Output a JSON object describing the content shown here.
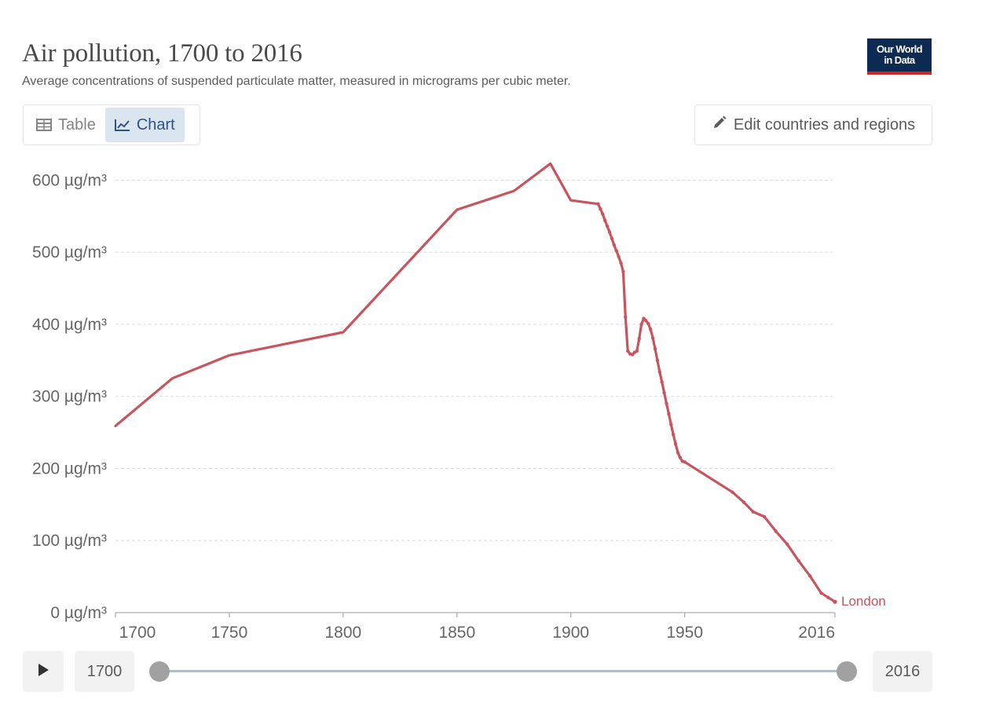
{
  "header": {
    "title": "Air pollution, 1700 to 2016",
    "subtitle": "Average concentrations of suspended particulate matter, measured in micrograms per cubic meter.",
    "logo_line1": "Our World",
    "logo_line2": "in Data"
  },
  "tabs": [
    {
      "label": "Table",
      "icon": "table-icon",
      "active": false
    },
    {
      "label": "Chart",
      "icon": "line-chart-icon",
      "active": true
    }
  ],
  "edit_button": {
    "label": "Edit countries and regions",
    "icon": "pencil-icon"
  },
  "timeline": {
    "play_icon": "play-icon",
    "start_year": "1700",
    "end_year": "2016"
  },
  "colors": {
    "series": "#c8545e",
    "accent": "#2f5383",
    "logo_bg": "#0d2a52",
    "logo_stripe": "#ce261e"
  },
  "chart_data": {
    "type": "line",
    "title": "Air pollution, 1700 to 2016",
    "subtitle": "Average concentrations of suspended particulate matter, measured in micrograms per cubic meter.",
    "xlabel": "",
    "ylabel": "",
    "unit": "µg/m³",
    "xlim": [
      1700,
      2016
    ],
    "ylim": [
      0,
      620
    ],
    "x_ticks": [
      "1700",
      "1750",
      "1800",
      "1850",
      "1900",
      "1950",
      "2016"
    ],
    "y_ticks": [
      "0 µg/m³",
      "100 µg/m³",
      "200 µg/m³",
      "300 µg/m³",
      "400 µg/m³",
      "500 µg/m³",
      "600 µg/m³"
    ],
    "grid": "horizontal dashed",
    "series": [
      {
        "name": "London",
        "color": "#c8545e",
        "x": [
          1700,
          1725,
          1750,
          1800,
          1850,
          1875,
          1891,
          1900,
          1912,
          1913,
          1914,
          1915,
          1916,
          1917,
          1918,
          1919,
          1920,
          1921,
          1922,
          1923,
          1924,
          1925,
          1926,
          1927,
          1928,
          1929,
          1930,
          1931,
          1932,
          1933,
          1934,
          1935,
          1936,
          1937,
          1938,
          1939,
          1940,
          1941,
          1942,
          1943,
          1944,
          1945,
          1946,
          1947,
          1948,
          1949,
          1950,
          1971,
          1976,
          1980,
          1985,
          1990,
          1995,
          2000,
          2005,
          2010,
          2013,
          2016
        ],
        "y": [
          259,
          325,
          357,
          389,
          559,
          585,
          623,
          572,
          567,
          560,
          553,
          544,
          536,
          528,
          519,
          510,
          502,
          494,
          485,
          473,
          410,
          363,
          359,
          358,
          361,
          363,
          380,
          400,
          408,
          405,
          401,
          393,
          381,
          366,
          350,
          334,
          320,
          305,
          290,
          276,
          261,
          247,
          234,
          222,
          215,
          210,
          209,
          167,
          153,
          140,
          133,
          113,
          95,
          72,
          51,
          27,
          21,
          15
        ]
      }
    ]
  }
}
